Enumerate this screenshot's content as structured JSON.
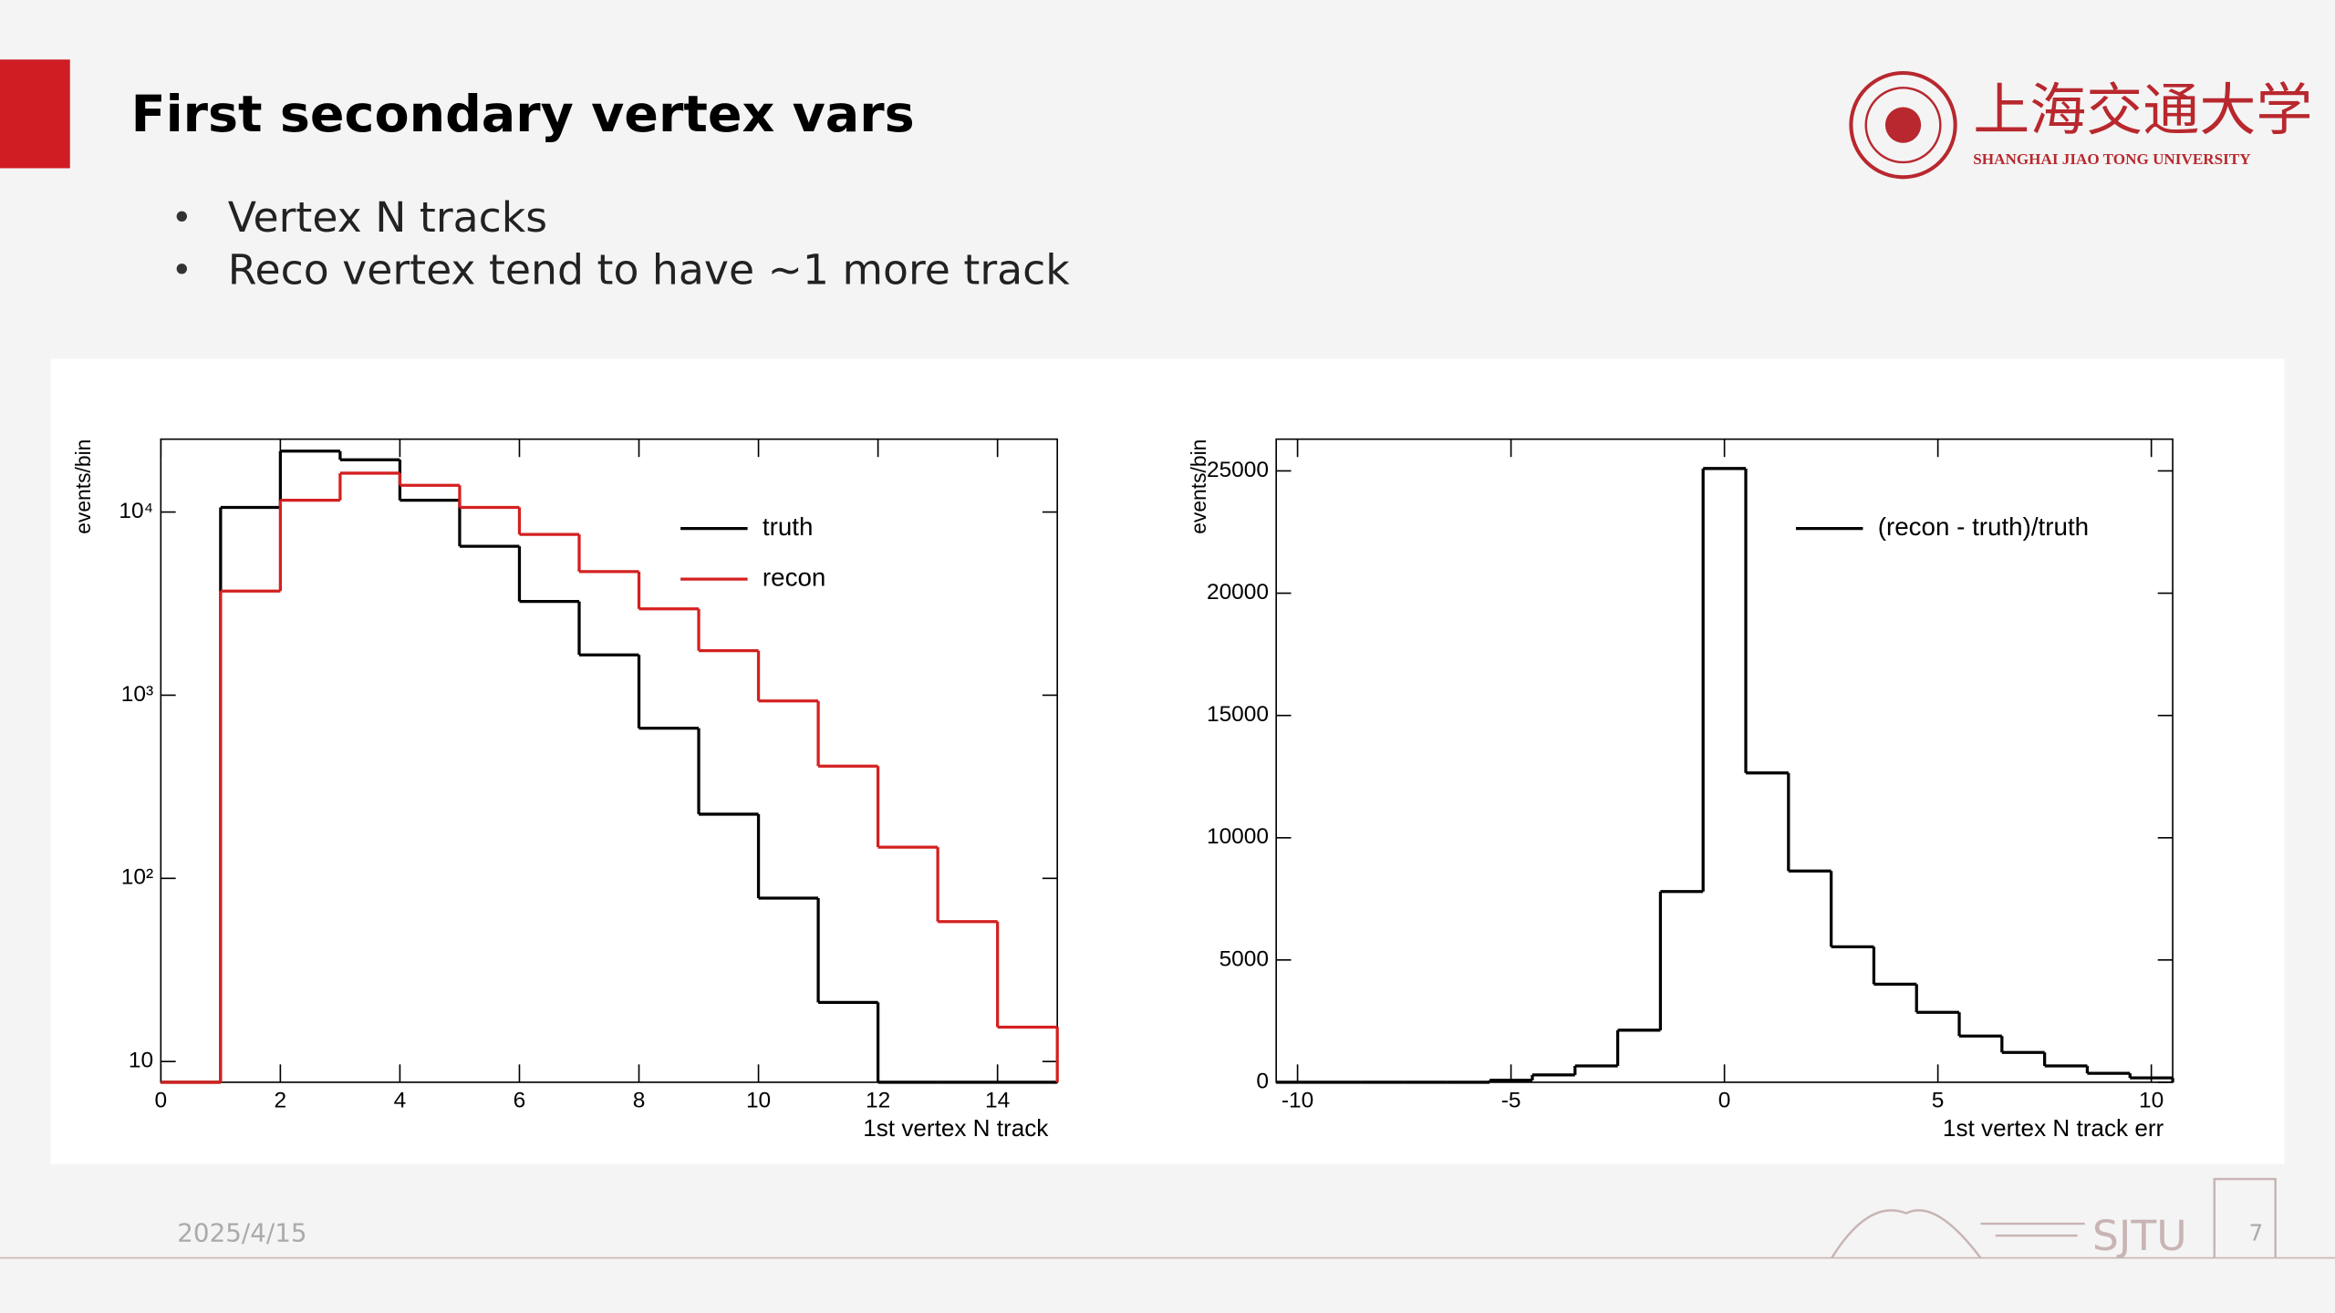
{
  "slide": {
    "title": "First secondary vertex vars",
    "bullets": [
      "Vertex N tracks",
      "Reco vertex tend to have ~1 more track"
    ],
    "date": "2025/4/15",
    "page_number": "7",
    "logo": {
      "name_cn": "上海交通大学",
      "name_en": "SHANGHAI JIAO TONG UNIVERSITY"
    },
    "footer_mark": "SJTU"
  },
  "chart_data": [
    {
      "type": "histogram",
      "x_label": "1st vertex N track",
      "y_label": "events/bin",
      "bins": [
        0,
        1,
        2,
        3,
        4,
        5,
        6,
        7,
        8,
        9,
        10,
        11,
        12,
        13,
        14,
        15
      ],
      "series": [
        {
          "name": "truth",
          "color": "#000000",
          "values": [
            0,
            10600,
            21500,
            19300,
            11600,
            6500,
            3250,
            1660,
            660,
            224,
            78,
            21,
            0,
            0,
            0
          ]
        },
        {
          "name": "recon",
          "color": "#d42020",
          "values": [
            0,
            3700,
            11600,
            16300,
            14000,
            10600,
            7550,
            4730,
            2960,
            1750,
            930,
            410,
            148,
            58,
            15.4
          ]
        }
      ],
      "xlim": [
        0,
        15
      ],
      "ylim": [
        7.7,
        25000
      ],
      "log_y": true,
      "xticks": [
        0,
        2,
        4,
        6,
        8,
        10,
        12,
        14
      ],
      "yticks": [
        10,
        {
          "value": 100,
          "label": "10²"
        },
        {
          "value": 1000,
          "label": "10³"
        },
        {
          "value": 10000,
          "label": "10⁴"
        }
      ],
      "legend": "upper right"
    },
    {
      "type": "histogram",
      "x_label": "1st vertex N track err",
      "y_label": "events/bin",
      "bins": [
        -10.5,
        -9.5,
        -8.5,
        -7.5,
        -6.5,
        -5.5,
        -4.5,
        -3.5,
        -2.5,
        -1.5,
        -0.5,
        0.5,
        1.5,
        2.5,
        3.5,
        4.5,
        5.5,
        6.5,
        7.5,
        8.5,
        9.5,
        10.5
      ],
      "series": [
        {
          "name": "(recon - truth)/truth",
          "color": "#000000",
          "values": [
            0,
            0,
            0,
            0,
            0,
            80,
            300,
            670,
            2130,
            7800,
            25100,
            12650,
            8640,
            5540,
            4010,
            2860,
            1890,
            1220,
            670,
            365,
            180
          ]
        }
      ],
      "xlim": [
        -10.5,
        10.5
      ],
      "ylim": [
        0,
        26300
      ],
      "log_y": false,
      "xticks": [
        -10,
        -5,
        0,
        5,
        10
      ],
      "yticks": [
        0,
        5000,
        10000,
        15000,
        20000,
        25000
      ],
      "legend": "upper right"
    }
  ]
}
